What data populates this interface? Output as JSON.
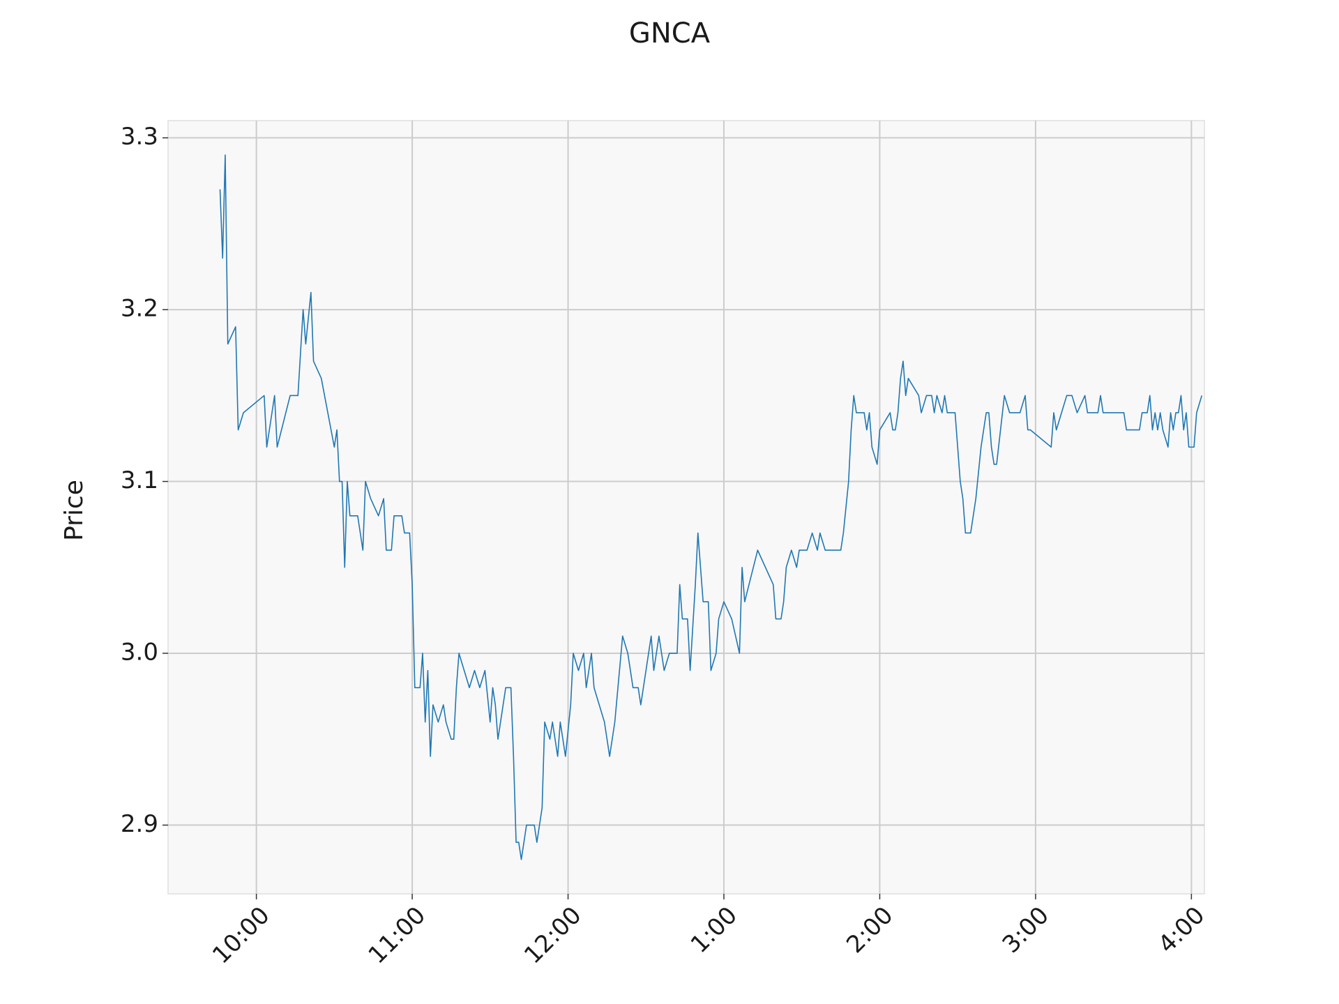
{
  "chart_data": {
    "type": "line",
    "title": "GNCA",
    "y_label": "Price",
    "color": "#1f77b4",
    "grid": true,
    "xlim": [
      "09:26",
      "16:05"
    ],
    "ylim": [
      2.86,
      3.31
    ],
    "xticks": [
      {
        "value": "10:00",
        "label": "10:00"
      },
      {
        "value": "11:00",
        "label": "11:00"
      },
      {
        "value": "12:00",
        "label": "12:00"
      },
      {
        "value": "13:00",
        "label": "1:00"
      },
      {
        "value": "14:00",
        "label": "2:00"
      },
      {
        "value": "15:00",
        "label": "3:00"
      },
      {
        "value": "16:00",
        "label": "4:00"
      }
    ],
    "yticks": [
      2.9,
      {
        "value": 3,
        "label": "3.0"
      },
      3.1,
      3.2,
      3.3
    ],
    "x": [
      "09:46",
      "09:47",
      "09:48",
      "09:49",
      "09:52",
      "09:53",
      "09:55",
      "10:03",
      "10:04",
      "10:07",
      "10:08",
      "10:13",
      "10:16",
      "10:18",
      "10:19",
      "10:21",
      "10:22",
      "10:25",
      "10:30",
      "10:31",
      "10:32",
      "10:33",
      "10:34",
      "10:35",
      "10:36",
      "10:39",
      "10:41",
      "10:42",
      "10:44",
      "10:47",
      "10:49",
      "10:50",
      "10:52",
      "10:53",
      "10:56",
      "10:57",
      "10:59",
      "11:00",
      "11:01",
      "11:03",
      "11:04",
      "11:05",
      "11:06",
      "11:07",
      "11:08",
      "11:10",
      "11:12",
      "11:13",
      "11:15",
      "11:16",
      "11:17",
      "11:18",
      "11:20",
      "11:22",
      "11:24",
      "11:26",
      "11:28",
      "11:30",
      "11:31",
      "11:32",
      "11:33",
      "11:35",
      "11:36",
      "11:38",
      "11:39",
      "11:40",
      "11:41",
      "11:42",
      "11:43",
      "11:44",
      "11:47",
      "11:48",
      "11:50",
      "11:51",
      "11:53",
      "11:54",
      "11:56",
      "11:57",
      "11:59",
      "12:01",
      "12:02",
      "12:04",
      "12:06",
      "12:07",
      "12:09",
      "12:10",
      "12:12",
      "12:14",
      "12:15",
      "12:16",
      "12:18",
      "12:21",
      "12:23",
      "12:25",
      "12:27",
      "12:28",
      "12:30",
      "12:32",
      "12:33",
      "12:35",
      "12:37",
      "12:39",
      "12:42",
      "12:43",
      "12:44",
      "12:46",
      "12:47",
      "12:49",
      "12:50",
      "12:52",
      "12:54",
      "12:55",
      "12:57",
      "12:58",
      "13:00",
      "13:03",
      "13:06",
      "13:07",
      "13:08",
      "13:13",
      "13:19",
      "13:20",
      "13:22",
      "13:23",
      "13:24",
      "13:26",
      "13:28",
      "13:29",
      "13:32",
      "13:34",
      "13:36",
      "13:37",
      "13:39",
      "13:45",
      "13:46",
      "13:48",
      "13:49",
      "13:50",
      "13:51",
      "13:54",
      "13:55",
      "13:56",
      "13:57",
      "13:59",
      "14:00",
      "14:04",
      "14:05",
      "14:06",
      "14:07",
      "14:08",
      "14:09",
      "14:10",
      "14:11",
      "14:15",
      "14:16",
      "14:18",
      "14:20",
      "14:21",
      "14:22",
      "14:24",
      "14:25",
      "14:26",
      "14:29",
      "14:31",
      "14:32",
      "14:33",
      "14:35",
      "14:36",
      "14:37",
      "14:39",
      "14:41",
      "14:42",
      "14:43",
      "14:44",
      "14:45",
      "14:48",
      "14:50",
      "14:54",
      "14:56",
      "14:57",
      "14:58",
      "15:06",
      "15:07",
      "15:08",
      "15:12",
      "15:14",
      "15:16",
      "15:19",
      "15:20",
      "15:24",
      "15:25",
      "15:26",
      "15:34",
      "15:35",
      "15:40",
      "15:41",
      "15:43",
      "15:44",
      "15:45",
      "15:46",
      "15:47",
      "15:48",
      "15:49",
      "15:51",
      "15:52",
      "15:53",
      "15:54",
      "15:55",
      "15:56",
      "15:57",
      "15:58",
      "15:59",
      "16:01",
      "16:02",
      "16:04"
    ],
    "values": [
      3.27,
      3.23,
      3.29,
      3.18,
      3.19,
      3.13,
      3.14,
      3.15,
      3.12,
      3.15,
      3.12,
      3.15,
      3.15,
      3.2,
      3.18,
      3.21,
      3.17,
      3.16,
      3.12,
      3.13,
      3.1,
      3.1,
      3.05,
      3.1,
      3.08,
      3.08,
      3.06,
      3.1,
      3.09,
      3.08,
      3.09,
      3.06,
      3.06,
      3.08,
      3.08,
      3.07,
      3.07,
      3.04,
      2.98,
      2.98,
      3.0,
      2.96,
      2.99,
      2.94,
      2.97,
      2.96,
      2.97,
      2.96,
      2.95,
      2.95,
      2.98,
      3.0,
      2.99,
      2.98,
      2.99,
      2.98,
      2.99,
      2.96,
      2.98,
      2.97,
      2.95,
      2.97,
      2.98,
      2.98,
      2.94,
      2.89,
      2.89,
      2.88,
      2.89,
      2.9,
      2.9,
      2.89,
      2.91,
      2.96,
      2.95,
      2.96,
      2.94,
      2.96,
      2.94,
      2.97,
      3.0,
      2.99,
      3.0,
      2.98,
      3.0,
      2.98,
      2.97,
      2.96,
      2.95,
      2.94,
      2.96,
      3.01,
      3.0,
      2.98,
      2.98,
      2.97,
      2.99,
      3.01,
      2.99,
      3.01,
      2.99,
      3.0,
      3.0,
      3.04,
      3.02,
      3.02,
      2.99,
      3.04,
      3.07,
      3.03,
      3.03,
      2.99,
      3.0,
      3.02,
      3.03,
      3.02,
      3.0,
      3.05,
      3.03,
      3.06,
      3.04,
      3.02,
      3.02,
      3.03,
      3.05,
      3.06,
      3.05,
      3.06,
      3.06,
      3.07,
      3.06,
      3.07,
      3.06,
      3.06,
      3.07,
      3.1,
      3.13,
      3.15,
      3.14,
      3.14,
      3.13,
      3.14,
      3.12,
      3.11,
      3.13,
      3.14,
      3.13,
      3.13,
      3.14,
      3.16,
      3.17,
      3.15,
      3.16,
      3.15,
      3.14,
      3.15,
      3.15,
      3.14,
      3.15,
      3.14,
      3.15,
      3.14,
      3.14,
      3.1,
      3.09,
      3.07,
      3.07,
      3.08,
      3.09,
      3.12,
      3.14,
      3.14,
      3.12,
      3.11,
      3.11,
      3.15,
      3.14,
      3.14,
      3.15,
      3.13,
      3.13,
      3.12,
      3.14,
      3.13,
      3.15,
      3.15,
      3.14,
      3.15,
      3.14,
      3.14,
      3.15,
      3.14,
      3.14,
      3.13,
      3.13,
      3.14,
      3.14,
      3.15,
      3.13,
      3.14,
      3.13,
      3.14,
      3.13,
      3.12,
      3.14,
      3.13,
      3.14,
      3.14,
      3.15,
      3.13,
      3.14,
      3.12,
      3.12,
      3.14,
      3.15
    ]
  }
}
